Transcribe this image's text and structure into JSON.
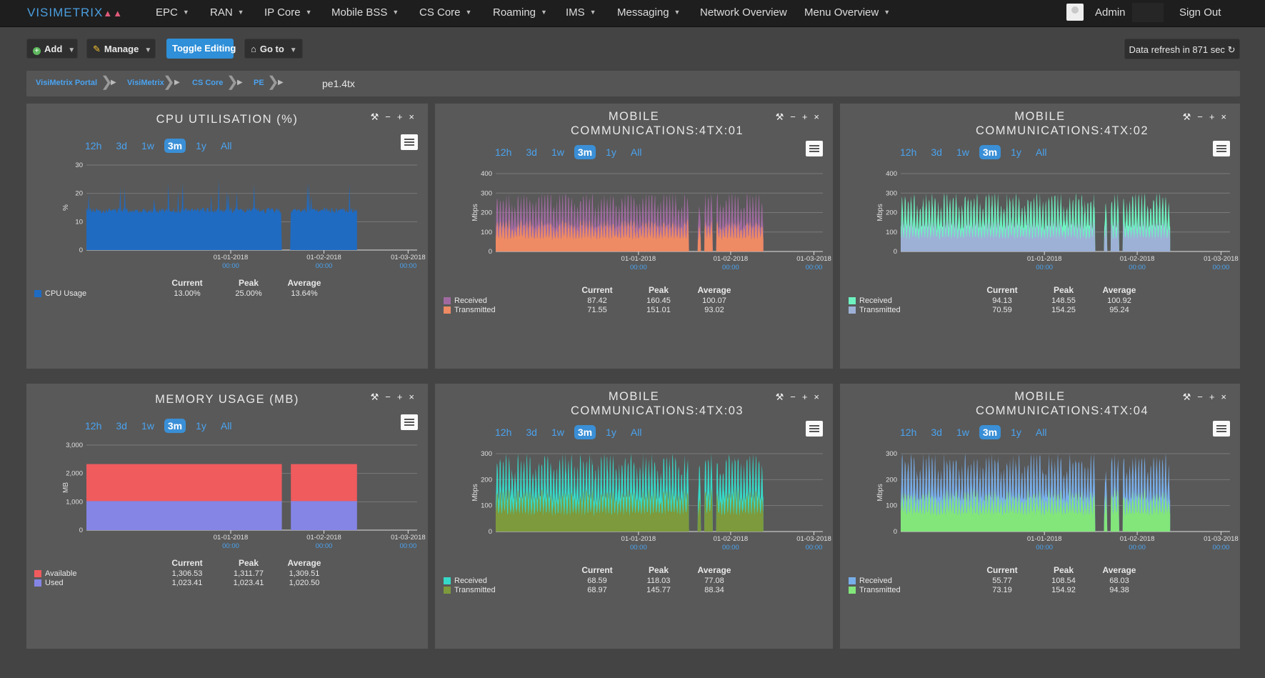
{
  "app": {
    "logo_main": "VISIMETRIX",
    "nav": [
      {
        "label": "EPC",
        "dd": true
      },
      {
        "label": "RAN",
        "dd": true
      },
      {
        "label": "IP Core",
        "dd": true
      },
      {
        "label": "Mobile BSS",
        "dd": true
      },
      {
        "label": "CS Core",
        "dd": true
      },
      {
        "label": "Roaming",
        "dd": true
      },
      {
        "label": "IMS",
        "dd": true
      },
      {
        "label": "Messaging",
        "dd": true
      },
      {
        "label": "Network Overview",
        "dd": false
      },
      {
        "label": "Menu Overview",
        "dd": true
      }
    ],
    "user": "Admin",
    "signout": "Sign Out"
  },
  "toolbar": {
    "add": "Add",
    "manage": "Manage",
    "toggle": "Toggle Editing",
    "goto": "Go to",
    "refresh": "Data refresh in 871 sec"
  },
  "breadcrumb": {
    "items": [
      "VisiMetrix Portal",
      "VisiMetrix",
      "CS Core",
      "PE"
    ],
    "current": "pe1.4tx"
  },
  "panel_ui": {
    "ranges": [
      "12h",
      "3d",
      "1w",
      "3m",
      "1y",
      "All"
    ],
    "selected": "3m",
    "stat_headers": [
      "Current",
      "Peak",
      "Average"
    ],
    "x_ticks": [
      {
        "date": "01-01-2018",
        "time": "00:00"
      },
      {
        "date": "01-02-2018",
        "time": "00:00"
      },
      {
        "date": "01-03-2018",
        "time": "00:00"
      }
    ]
  },
  "panels": [
    {
      "title": "CPU UTILISATION (%)",
      "type": "cpu",
      "ylabel": "%",
      "yticks": [
        "0",
        "10",
        "20",
        "30"
      ],
      "ymax": 30,
      "series": [
        {
          "name": "CPU Usage",
          "color": "#1f6bc2",
          "current": "13.00%",
          "peak": "25.00%",
          "average": "13.64%"
        }
      ]
    },
    {
      "title": "MOBILE COMMUNICATIONS:4TX:01",
      "type": "traffic",
      "ylabel": "Mbps",
      "yticks": [
        "0",
        "100",
        "200",
        "300",
        "400"
      ],
      "ymax": 400,
      "series": [
        {
          "name": "Received",
          "color": "#a06aa0",
          "current": "87.42",
          "peak": "160.45",
          "average": "100.07"
        },
        {
          "name": "Transmitted",
          "color": "#ee8a64",
          "current": "71.55",
          "peak": "151.01",
          "average": "93.02"
        }
      ]
    },
    {
      "title": "MOBILE COMMUNICATIONS:4TX:02",
      "type": "traffic",
      "ylabel": "Mbps",
      "yticks": [
        "0",
        "100",
        "200",
        "300",
        "400"
      ],
      "ymax": 400,
      "series": [
        {
          "name": "Received",
          "color": "#6df2c0",
          "current": "94.13",
          "peak": "148.55",
          "average": "100.92"
        },
        {
          "name": "Transmitted",
          "color": "#9db1d6",
          "current": "70.59",
          "peak": "154.25",
          "average": "95.24"
        }
      ]
    },
    {
      "title": "MEMORY USAGE (MB)",
      "type": "memory",
      "ylabel": "MB",
      "yticks": [
        "0",
        "1,000",
        "2,000",
        "3,000"
      ],
      "ymax": 3000,
      "series": [
        {
          "name": "Available",
          "color": "#f05b5e",
          "current": "1,306.53",
          "peak": "1,311.77",
          "average": "1,309.51"
        },
        {
          "name": "Used",
          "color": "#8585e6",
          "current": "1,023.41",
          "peak": "1,023.41",
          "average": "1,020.50"
        }
      ]
    },
    {
      "title": "MOBILE COMMUNICATIONS:4TX:03",
      "type": "traffic",
      "ylabel": "Mbps",
      "yticks": [
        "0",
        "100",
        "200",
        "300"
      ],
      "ymax": 300,
      "series": [
        {
          "name": "Received",
          "color": "#36d9c8",
          "current": "68.59",
          "peak": "118.03",
          "average": "77.08"
        },
        {
          "name": "Transmitted",
          "color": "#7d9a3c",
          "current": "68.97",
          "peak": "145.77",
          "average": "88.34"
        }
      ]
    },
    {
      "title": "MOBILE COMMUNICATIONS:4TX:04",
      "type": "traffic",
      "ylabel": "Mbps",
      "yticks": [
        "0",
        "100",
        "200",
        "300"
      ],
      "ymax": 300,
      "series": [
        {
          "name": "Received",
          "color": "#78aeea",
          "current": "55.77",
          "peak": "108.54",
          "average": "68.03"
        },
        {
          "name": "Transmitted",
          "color": "#82e67a",
          "current": "73.19",
          "peak": "154.92",
          "average": "94.38"
        }
      ]
    }
  ]
}
